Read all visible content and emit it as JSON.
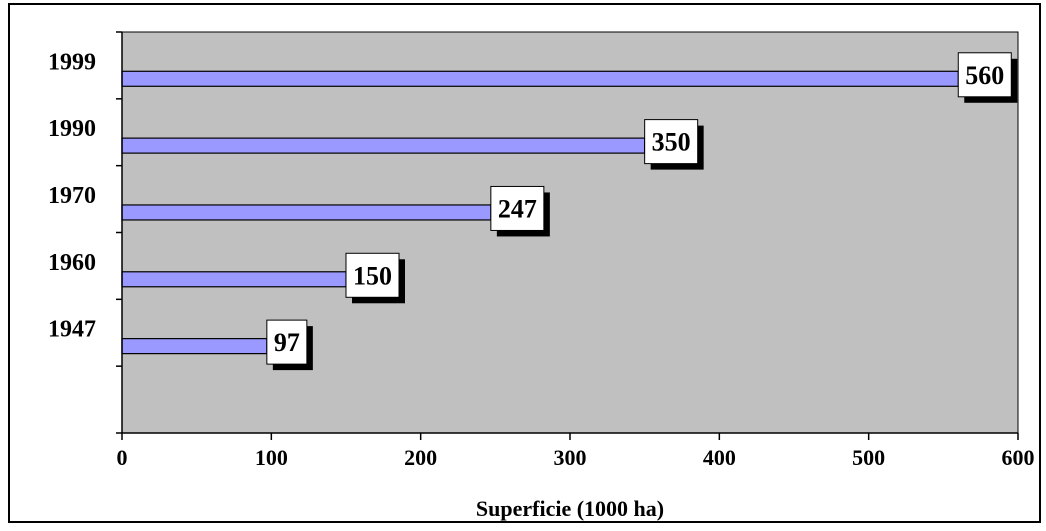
{
  "chart_data": {
    "type": "bar",
    "orientation": "horizontal",
    "categories": [
      "1999",
      "1990",
      "1970",
      "1960",
      "1947"
    ],
    "values": [
      560,
      350,
      247,
      150,
      97
    ],
    "data_labels": [
      "560",
      "350",
      "247",
      "150",
      "97"
    ],
    "title": "",
    "xlabel": "Superficie (1000 ha)",
    "ylabel": "",
    "xlim": [
      0,
      600
    ],
    "x_ticks": [
      0,
      100,
      200,
      300,
      400,
      500,
      600
    ],
    "x_tick_labels": [
      "0",
      "100",
      "200",
      "300",
      "400",
      "500",
      "600"
    ],
    "grid": false,
    "legend": "none",
    "colors": {
      "bar_fill": "#9999ff",
      "bar_stroke": "#000000",
      "plot_background": "#c0c0c0",
      "page_background": "#ffffff",
      "label_box": "#ffffff",
      "label_shadow": "#000000"
    }
  }
}
